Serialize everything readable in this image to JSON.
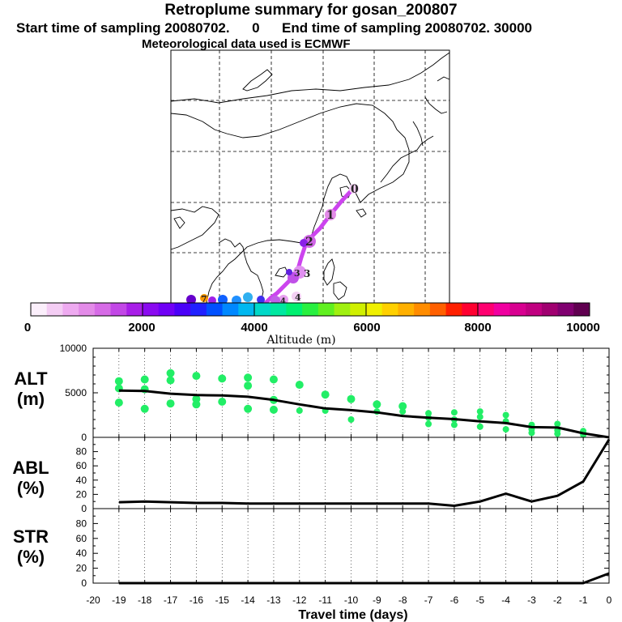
{
  "header": {
    "title": "Retroplume summary for gosan_200807",
    "start_label": "Start time of sampling 20080702.",
    "start_hour": "0",
    "end_label": "End time of sampling 20080702. 30000",
    "met": "Meteorological data used is ECMWF"
  },
  "colorbar": {
    "label": "Altitude (m)",
    "ticks": [
      "0",
      "2000",
      "4000",
      "6000",
      "8000",
      "10000"
    ],
    "colors": [
      "#fbeffb",
      "#f4cdf4",
      "#eeaaf0",
      "#e38be8",
      "#d66be6",
      "#c247e6",
      "#a81ee8",
      "#8a0af0",
      "#7000f6",
      "#4a00f8",
      "#2020ff",
      "#0050ff",
      "#0088ff",
      "#00b8f0",
      "#00d8c8",
      "#00e8a0",
      "#00f070",
      "#28f040",
      "#60f020",
      "#a0f010",
      "#d0f000",
      "#f0f000",
      "#ffd000",
      "#ffb000",
      "#ff8c00",
      "#ff6000",
      "#ff2000",
      "#ff0030",
      "#ff0070",
      "#f000a0",
      "#d80090",
      "#c00080",
      "#a00070",
      "#800070",
      "#600050"
    ]
  },
  "map": {
    "day_labels": [
      "0",
      "1",
      "2",
      "3",
      "4"
    ],
    "extra_markers": [
      "3",
      "4",
      "7"
    ]
  },
  "chart_data": [
    {
      "type": "line+scatter",
      "panel": "ALT",
      "ylabel": "ALT (m)",
      "ylabel_parts": [
        "ALT",
        "(m)"
      ],
      "ylim": [
        0,
        10000
      ],
      "yticks": [
        "0",
        "5000",
        "10000"
      ],
      "x": [
        0,
        -1,
        -2,
        -3,
        -4,
        -5,
        -6,
        -7,
        -8,
        -9,
        -10,
        -11,
        -12,
        -13,
        -14,
        -15,
        -16,
        -17,
        -18,
        -19
      ],
      "mean_line": [
        0,
        450,
        1100,
        1150,
        1600,
        1800,
        2050,
        2200,
        2400,
        2800,
        3050,
        3250,
        3700,
        4200,
        4550,
        4700,
        4750,
        4900,
        5200,
        5250
      ],
      "scatter": [
        {
          "x": -1,
          "y": 700
        },
        {
          "x": -1,
          "y": 300
        },
        {
          "x": -2,
          "y": 1500
        },
        {
          "x": -2,
          "y": 800
        },
        {
          "x": -2,
          "y": 400
        },
        {
          "x": -3,
          "y": 1400
        },
        {
          "x": -3,
          "y": 900
        },
        {
          "x": -3,
          "y": 500
        },
        {
          "x": -4,
          "y": 2500
        },
        {
          "x": -4,
          "y": 1800
        },
        {
          "x": -4,
          "y": 900
        },
        {
          "x": -5,
          "y": 2900
        },
        {
          "x": -5,
          "y": 2300
        },
        {
          "x": -5,
          "y": 1200
        },
        {
          "x": -6,
          "y": 2800
        },
        {
          "x": -6,
          "y": 2000
        },
        {
          "x": -6,
          "y": 1400
        },
        {
          "x": -7,
          "y": 2700
        },
        {
          "x": -7,
          "y": 2200
        },
        {
          "x": -7,
          "y": 1500
        },
        {
          "x": -8,
          "y": 3500
        },
        {
          "x": -8,
          "y": 2900
        },
        {
          "x": -9,
          "y": 3700
        },
        {
          "x": -9,
          "y": 2900
        },
        {
          "x": -10,
          "y": 4300
        },
        {
          "x": -10,
          "y": 2000
        },
        {
          "x": -11,
          "y": 4800
        },
        {
          "x": -11,
          "y": 3000
        },
        {
          "x": -12,
          "y": 5900
        },
        {
          "x": -12,
          "y": 3000
        },
        {
          "x": -13,
          "y": 6500
        },
        {
          "x": -13,
          "y": 4200
        },
        {
          "x": -13,
          "y": 3100
        },
        {
          "x": -14,
          "y": 6700
        },
        {
          "x": -14,
          "y": 5800
        },
        {
          "x": -14,
          "y": 3200
        },
        {
          "x": -15,
          "y": 6600
        },
        {
          "x": -15,
          "y": 4000
        },
        {
          "x": -16,
          "y": 6900
        },
        {
          "x": -16,
          "y": 4300
        },
        {
          "x": -16,
          "y": 3700
        },
        {
          "x": -17,
          "y": 7200
        },
        {
          "x": -17,
          "y": 6400
        },
        {
          "x": -17,
          "y": 3800
        },
        {
          "x": -18,
          "y": 6500
        },
        {
          "x": -18,
          "y": 5400
        },
        {
          "x": -18,
          "y": 3200
        },
        {
          "x": -19,
          "y": 6300
        },
        {
          "x": -19,
          "y": 5500
        },
        {
          "x": -19,
          "y": 3900
        }
      ],
      "marker_color": "#22ee66"
    },
    {
      "type": "line",
      "panel": "ABL",
      "ylabel": "ABL (%)",
      "ylabel_parts": [
        "ABL",
        "(%)"
      ],
      "ylim": [
        0,
        100
      ],
      "yticks": [
        "0",
        "20",
        "40",
        "60",
        "80"
      ],
      "x": [
        0,
        -1,
        -2,
        -3,
        -4,
        -5,
        -6,
        -7,
        -8,
        -9,
        -10,
        -11,
        -12,
        -13,
        -14,
        -15,
        -16,
        -17,
        -18,
        -19
      ],
      "values": [
        97,
        38,
        18,
        10,
        21,
        10,
        4,
        7,
        7,
        7,
        7,
        7,
        7,
        7,
        7,
        8,
        8,
        9,
        10,
        9
      ]
    },
    {
      "type": "line",
      "panel": "STR",
      "ylabel": "STR (%)",
      "ylabel_parts": [
        "STR",
        "(%)"
      ],
      "ylim": [
        0,
        100
      ],
      "yticks": [
        "0",
        "20",
        "40",
        "60",
        "80"
      ],
      "x": [
        0,
        -1,
        -2,
        -3,
        -4,
        -5,
        -6,
        -7,
        -8,
        -9,
        -10,
        -11,
        -12,
        -13,
        -14,
        -15,
        -16,
        -17,
        -18,
        -19
      ],
      "values": [
        13,
        0,
        0,
        0,
        0,
        0,
        0,
        0,
        0,
        0,
        0,
        0,
        0,
        0,
        0,
        0,
        0,
        0,
        0,
        0
      ]
    }
  ],
  "xaxis": {
    "label": "Travel time (days)",
    "ticks": [
      "-20",
      "-19",
      "-18",
      "-17",
      "-16",
      "-15",
      "-14",
      "-13",
      "-12",
      "-11",
      "-10",
      "-9",
      "-8",
      "-7",
      "-6",
      "-5",
      "-4",
      "-3",
      "-2",
      "-1",
      "0"
    ]
  }
}
